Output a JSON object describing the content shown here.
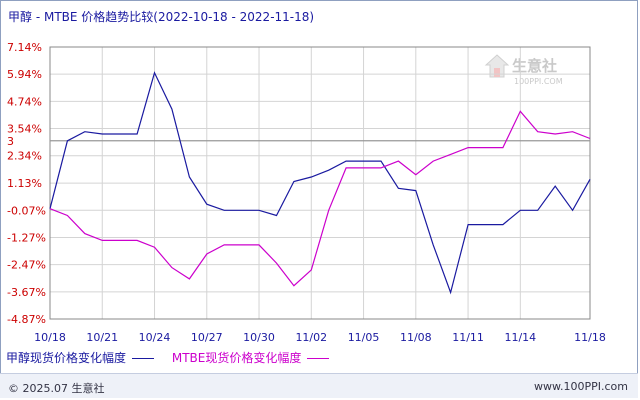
{
  "title": "甲醇 - MTBE 价格趋势比较(2022-10-18 - 2022-11-18)",
  "watermark": {
    "text": "生意社",
    "sub": "100PPI.COM"
  },
  "footer": {
    "left": "© 2025.07 生意社",
    "right": "www.100PPI.com"
  },
  "colors": {
    "series1": "#1a1aa0",
    "series2": "#cc00cc",
    "grid": "#d4d4d4",
    "axis": "#888888",
    "ref_line": "#999999"
  },
  "chart_data": {
    "type": "line",
    "title": "甲醇 - MTBE 价格趋势比较(2022-10-18 - 2022-11-18)",
    "xlabel": "",
    "ylabel": "",
    "x": [
      "10/18",
      "10/19",
      "10/20",
      "10/21",
      "10/22",
      "10/23",
      "10/24",
      "10/25",
      "10/26",
      "10/27",
      "10/28",
      "10/29",
      "10/30",
      "10/31",
      "11/01",
      "11/02",
      "11/03",
      "11/04",
      "11/05",
      "11/06",
      "11/07",
      "11/08",
      "11/09",
      "11/10",
      "11/11",
      "11/12",
      "11/13",
      "11/14",
      "11/15",
      "11/16",
      "11/17",
      "11/18"
    ],
    "x_tick_labels": [
      "10/18",
      "10/21",
      "10/24",
      "10/27",
      "10/30",
      "11/02",
      "11/05",
      "11/08",
      "11/11",
      "11/14",
      "11/18"
    ],
    "x_tick_index": [
      0,
      3,
      6,
      9,
      12,
      15,
      18,
      21,
      24,
      27,
      31
    ],
    "y_tick_labels": [
      "7.14%",
      "5.94%",
      "4.74%",
      "3.54%",
      "2.34%",
      "1.13%",
      "-0.07%",
      "-1.27%",
      "-2.47%",
      "-3.67%",
      "-4.87%"
    ],
    "y_tick_values": [
      7.14,
      5.94,
      4.74,
      3.54,
      2.34,
      1.13,
      -0.07,
      -1.27,
      -2.47,
      -3.67,
      -4.87
    ],
    "reference_line": {
      "value": 3.0,
      "label": "3"
    },
    "ylim": [
      -4.87,
      7.14
    ],
    "grid": true,
    "legend_position": "bottom-left",
    "series": [
      {
        "name": "甲醇现货价格变化幅度",
        "values": [
          0.0,
          3.0,
          3.4,
          3.3,
          3.3,
          3.3,
          6.0,
          4.4,
          1.4,
          0.2,
          -0.07,
          -0.07,
          -0.07,
          -0.3,
          1.2,
          1.4,
          1.7,
          2.1,
          2.1,
          2.1,
          0.9,
          0.8,
          -1.6,
          -3.7,
          -0.7,
          -0.7,
          -0.7,
          -0.07,
          -0.07,
          1.0,
          -0.07,
          1.3
        ]
      },
      {
        "name": "MTBE现货价格变化幅度",
        "values": [
          0.0,
          -0.3,
          -1.1,
          -1.4,
          -1.4,
          -1.4,
          -1.7,
          -2.6,
          -3.1,
          -2.0,
          -1.6,
          -1.6,
          -1.6,
          -2.4,
          -3.4,
          -2.7,
          -0.07,
          1.8,
          1.8,
          1.8,
          2.1,
          1.5,
          2.1,
          2.4,
          2.7,
          2.7,
          2.7,
          4.3,
          3.4,
          3.3,
          3.4,
          3.1
        ]
      }
    ]
  }
}
